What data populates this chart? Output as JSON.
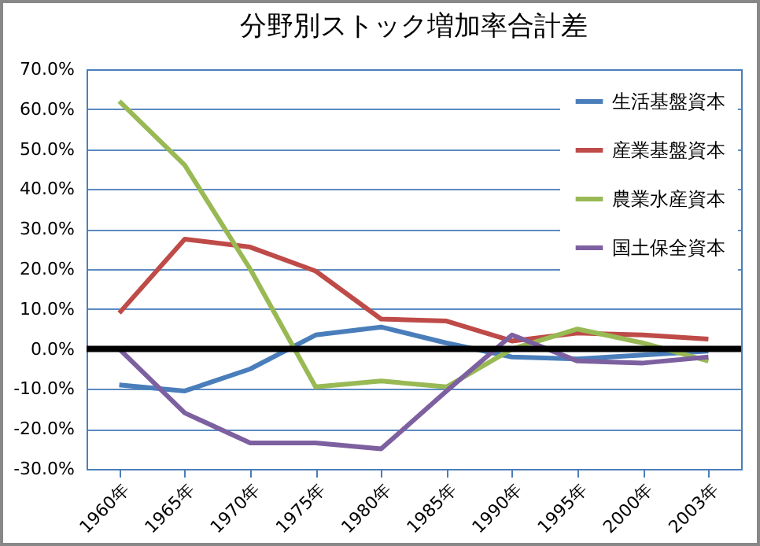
{
  "chart_data": {
    "type": "line",
    "title": "分野別ストック増加率合計差",
    "categories": [
      "1960年",
      "1965年",
      "1970年",
      "1975年",
      "1980年",
      "1985年",
      "1990年",
      "1995年",
      "2000年",
      "2003年"
    ],
    "series": [
      {
        "name": "生活基盤資本",
        "color": "#4a7ebb",
        "values": [
          -9,
          -10.5,
          -5,
          3.5,
          5.5,
          1.5,
          -2,
          -2.5,
          -1.5,
          -0.5
        ]
      },
      {
        "name": "産業基盤資本",
        "color": "#be4b48",
        "values": [
          9,
          27.5,
          25.5,
          19.5,
          7.5,
          7,
          2,
          4,
          3.5,
          2.5
        ]
      },
      {
        "name": "農業水産資本",
        "color": "#98b954",
        "values": [
          62,
          46,
          20,
          -9.5,
          -8,
          -9.5,
          0,
          5,
          1.5,
          -3
        ]
      },
      {
        "name": "国土保全資本",
        "color": "#7d60a0",
        "values": [
          0,
          -16,
          -23.5,
          -23.5,
          -25,
          -10.5,
          3.5,
          -3,
          -3.5,
          -2
        ]
      }
    ],
    "ylim": [
      -30,
      70
    ],
    "yticks": [
      {
        "value": -30,
        "label": "-30.0%"
      },
      {
        "value": -20,
        "label": "-20.0%"
      },
      {
        "value": -10,
        "label": "-10.0%"
      },
      {
        "value": 0,
        "label": "0.0%"
      },
      {
        "value": 10,
        "label": "10.0%"
      },
      {
        "value": 20,
        "label": "20.0%"
      },
      {
        "value": 30,
        "label": "30.0%"
      },
      {
        "value": 40,
        "label": "40.0%"
      },
      {
        "value": 50,
        "label": "50.0%"
      },
      {
        "value": 60,
        "label": "60.0%"
      },
      {
        "value": 70,
        "label": "70.0%"
      }
    ],
    "ref_lines": [
      {
        "axis": "y",
        "value": 0,
        "color": "#000000"
      }
    ],
    "grid": "y",
    "legend": "top right",
    "marker": "none",
    "line_style": "solid"
  }
}
